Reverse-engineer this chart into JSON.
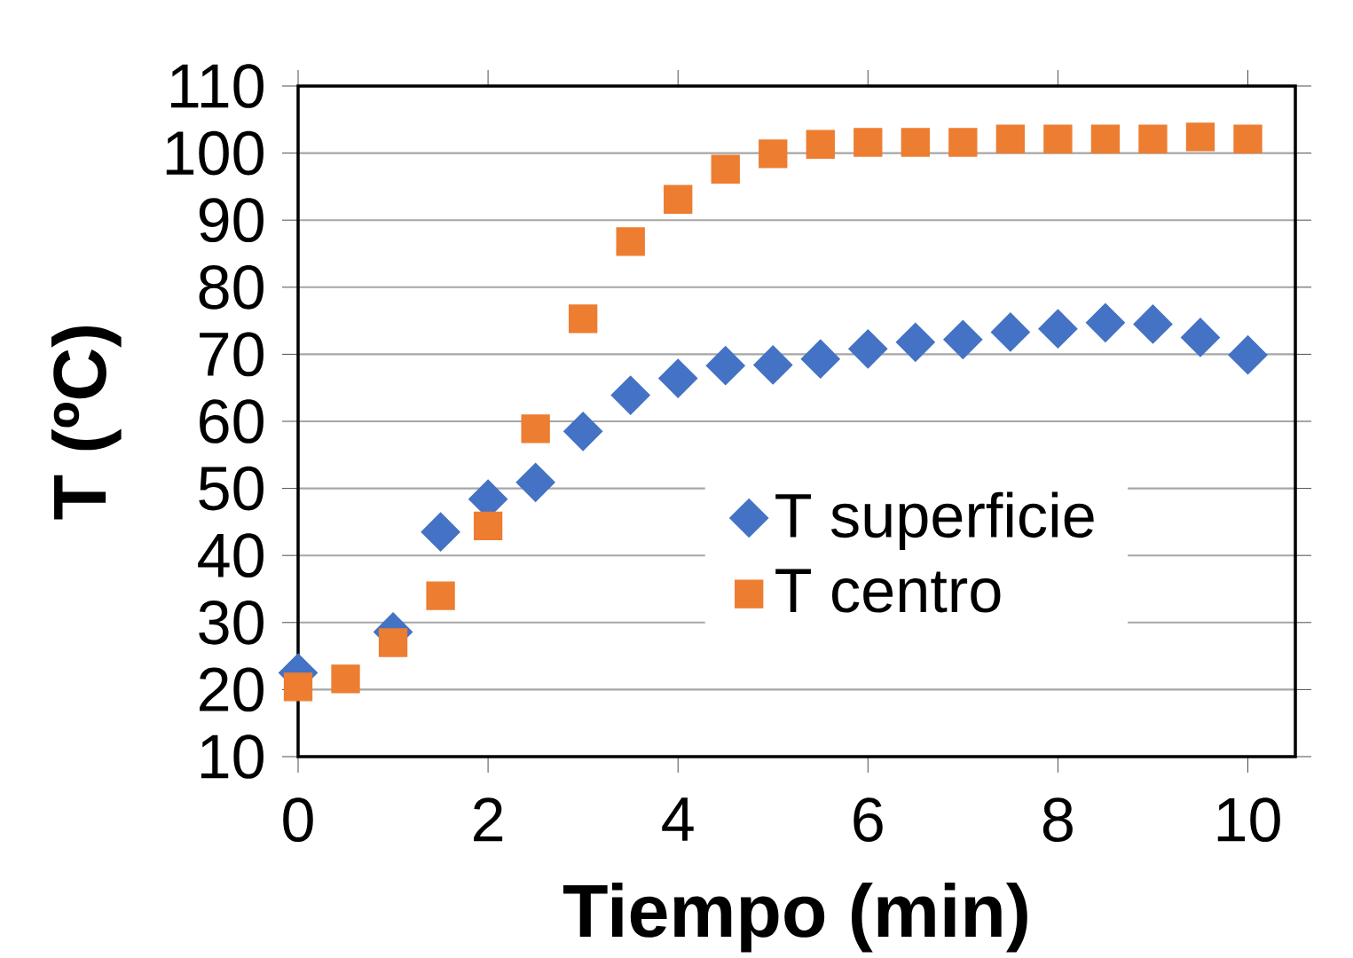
{
  "chart_data": {
    "type": "scatter",
    "xlabel": "Tiempo (min)",
    "ylabel": "T (ºC)",
    "x": [
      0,
      0.5,
      1,
      1.5,
      2,
      2.5,
      3,
      3.5,
      4,
      4.5,
      5,
      5.5,
      6,
      6.5,
      7,
      7.5,
      8,
      8.5,
      9,
      9.5,
      10
    ],
    "series": [
      {
        "name": "T superficie",
        "color": "#4472c4",
        "marker": "diamond",
        "values": [
          22.5,
          null,
          28.6,
          43.5,
          48.4,
          50.9,
          58.5,
          63.9,
          66.4,
          68.3,
          68.4,
          69.3,
          70.8,
          71.8,
          72.2,
          73.3,
          73.8,
          74.7,
          74.5,
          72.5,
          69.9
        ]
      },
      {
        "name": "T centro",
        "color": "#ed7d31",
        "marker": "square",
        "values": [
          20.4,
          21.6,
          27.0,
          34.0,
          44.4,
          58.9,
          75.3,
          86.8,
          93.1,
          97.6,
          99.9,
          101.3,
          101.6,
          101.6,
          101.6,
          102.1,
          102.1,
          102.1,
          102.1,
          102.4,
          102.1
        ]
      }
    ],
    "xlim": [
      0,
      10.5
    ],
    "ylim": [
      10,
      110
    ],
    "xticks": [
      0,
      2,
      4,
      6,
      8,
      10
    ],
    "yticks": [
      10,
      20,
      30,
      40,
      50,
      60,
      70,
      80,
      90,
      100,
      110
    ],
    "grid": "y",
    "legend": "center"
  }
}
